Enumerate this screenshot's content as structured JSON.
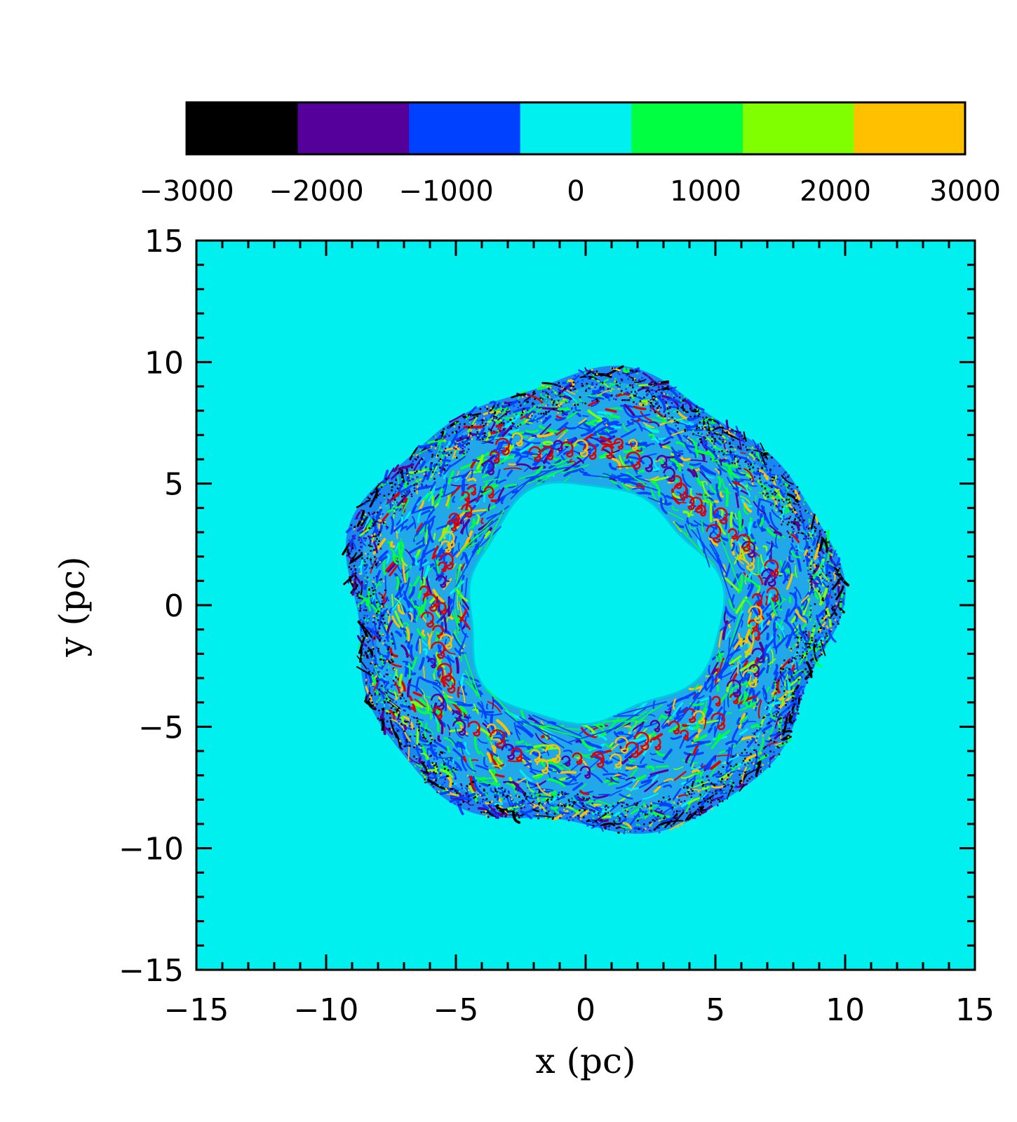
{
  "chart_data": {
    "type": "heatmap",
    "title": "",
    "xlabel": "x (pc)",
    "ylabel": "y (pc)",
    "xlim": [
      -15,
      15
    ],
    "ylim": [
      -15,
      15
    ],
    "xticks": [
      -15,
      -10,
      -5,
      0,
      5,
      10,
      15
    ],
    "yticks": [
      -15,
      -10,
      -5,
      0,
      5,
      10,
      15
    ],
    "xtick_labels": [
      "−15",
      "−10",
      "−5",
      "0",
      "5",
      "10",
      "15"
    ],
    "ytick_labels": [
      "−15",
      "−10",
      "−5",
      "0",
      "5",
      "10",
      "15"
    ],
    "background_value": 0,
    "shell": {
      "description": "turbulent shell of mixed values",
      "outer_radius": 9.4,
      "inner_radius": 4.9,
      "center": [
        0.2,
        0.0
      ]
    },
    "colorbar": {
      "range": [
        -3000,
        3000
      ],
      "tick_values": [
        -3000,
        -2000,
        -1000,
        0,
        1000,
        2000,
        3000
      ],
      "tick_labels": [
        "−3000",
        "−2000",
        "−1000",
        "0",
        "1000",
        "2000",
        "3000"
      ],
      "bins": [
        {
          "lo": -3000,
          "hi": -2143,
          "color": "#000000"
        },
        {
          "lo": -2143,
          "hi": -1286,
          "color": "#55009a"
        },
        {
          "lo": -1286,
          "hi": -429,
          "color": "#0040ff"
        },
        {
          "lo": -429,
          "hi": 429,
          "color": "#00f0f0"
        },
        {
          "lo": 429,
          "hi": 1286,
          "color": "#00ff40"
        },
        {
          "lo": 1286,
          "hi": 2143,
          "color": "#80ff00"
        },
        {
          "lo": 2143,
          "hi": 3000,
          "color": "#ffc000"
        }
      ]
    },
    "extra_colors": {
      "red_filaments": "#e00000"
    }
  }
}
